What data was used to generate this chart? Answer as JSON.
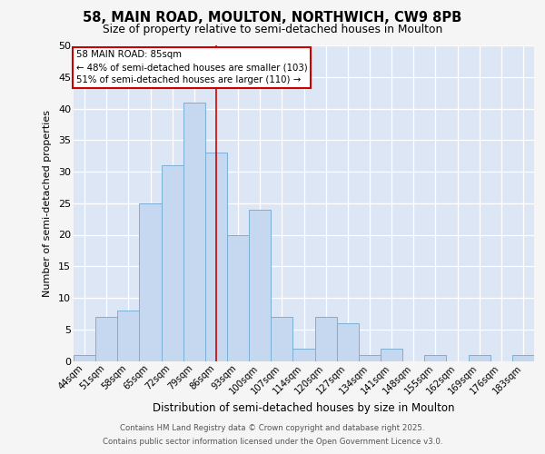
{
  "title_line1": "58, MAIN ROAD, MOULTON, NORTHWICH, CW9 8PB",
  "title_line2": "Size of property relative to semi-detached houses in Moulton",
  "xlabel": "Distribution of semi-detached houses by size in Moulton",
  "ylabel": "Number of semi-detached properties",
  "categories": [
    "44sqm",
    "51sqm",
    "58sqm",
    "65sqm",
    "72sqm",
    "79sqm",
    "86sqm",
    "93sqm",
    "100sqm",
    "107sqm",
    "114sqm",
    "120sqm",
    "127sqm",
    "134sqm",
    "141sqm",
    "148sqm",
    "155sqm",
    "162sqm",
    "169sqm",
    "176sqm",
    "183sqm"
  ],
  "values": [
    1,
    7,
    8,
    25,
    31,
    41,
    33,
    20,
    24,
    7,
    2,
    7,
    6,
    1,
    2,
    0,
    1,
    0,
    1,
    0,
    1
  ],
  "bar_color": "#c5d8f0",
  "bar_edge_color": "#7aafd4",
  "highlight_bar_index": 6,
  "ylim": [
    0,
    50
  ],
  "yticks": [
    0,
    5,
    10,
    15,
    20,
    25,
    30,
    35,
    40,
    45,
    50
  ],
  "annotation_title": "58 MAIN ROAD: 85sqm",
  "annotation_line1": "← 48% of semi-detached houses are smaller (103)",
  "annotation_line2": "51% of semi-detached houses are larger (110) →",
  "red_line_color": "#cc0000",
  "annotation_box_color": "#ffffff",
  "annotation_box_edge": "#cc0000",
  "background_color": "#dce6f5",
  "grid_color": "#ffffff",
  "fig_bg_color": "#f5f5f5",
  "footer_line1": "Contains HM Land Registry data © Crown copyright and database right 2025.",
  "footer_line2": "Contains public sector information licensed under the Open Government Licence v3.0."
}
